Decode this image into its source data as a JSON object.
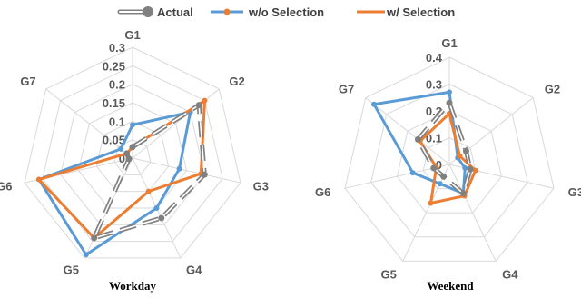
{
  "legend": {
    "items": [
      {
        "label": "Actual",
        "color": "#808080",
        "style": "dashed-outline"
      },
      {
        "label": "w/o Selection",
        "color": "#5B9BD5",
        "style": "solid"
      },
      {
        "label": "w/ Selection",
        "color": "#ED7D31",
        "style": "solid"
      }
    ]
  },
  "chart_data": [
    {
      "type": "radar",
      "title": "Workday",
      "categories": [
        "G1",
        "G2",
        "G3",
        "G4",
        "G5",
        "G6",
        "G7"
      ],
      "rmax": 0.3,
      "ticks": [
        0,
        0.05,
        0.1,
        0.15,
        0.2,
        0.25,
        0.3
      ],
      "tick_labels": [
        "0",
        "0.05",
        "0.1",
        "0.15",
        "0.2",
        "0.25",
        "0.3"
      ],
      "series": [
        {
          "name": "Actual",
          "color": "#808080",
          "values": [
            0.03,
            0.23,
            0.2,
            0.18,
            0.24,
            0.01,
            0.02
          ]
        },
        {
          "name": "w/o Selection",
          "color": "#5B9BD5",
          "values": [
            0.09,
            0.2,
            0.13,
            0.15,
            0.29,
            0.26,
            0.04
          ]
        },
        {
          "name": "w/ Selection",
          "color": "#ED7D31",
          "values": [
            0.03,
            0.25,
            0.19,
            0.1,
            0.24,
            0.26,
            0.02
          ]
        }
      ]
    },
    {
      "type": "radar",
      "title": "Weekend",
      "categories": [
        "G1",
        "G2",
        "G3",
        "G4",
        "G5",
        "G6",
        "G7"
      ],
      "rmax": 0.4,
      "ticks": [
        0,
        0.1,
        0.2,
        0.3,
        0.4
      ],
      "tick_labels": [
        "0",
        "0.1",
        "0.2",
        "0.3",
        "0.4"
      ],
      "series": [
        {
          "name": "Actual",
          "color": "#808080",
          "values": [
            0.23,
            0.08,
            0.08,
            0.12,
            0.05,
            0.06,
            0.15
          ]
        },
        {
          "name": "w/o Selection",
          "color": "#5B9BD5",
          "values": [
            0.27,
            0.04,
            0.06,
            0.12,
            0.08,
            0.14,
            0.36
          ]
        },
        {
          "name": "w/ Selection",
          "color": "#ED7D31",
          "values": [
            0.19,
            0.05,
            0.1,
            0.13,
            0.16,
            0.05,
            0.14
          ]
        }
      ]
    }
  ]
}
